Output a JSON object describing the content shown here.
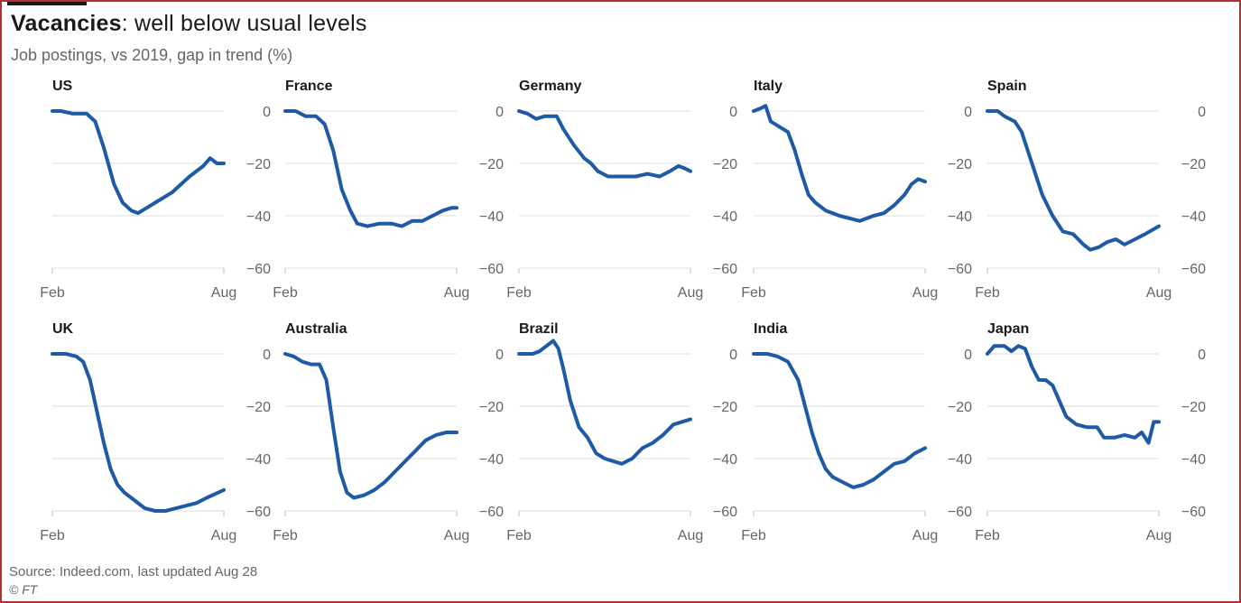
{
  "header": {
    "title_bold": "Vacancies",
    "title_rest": ": well below usual levels",
    "subtitle": "Job postings, vs 2019, gap in trend (%)"
  },
  "footer": {
    "source": "Source: Indeed.com, last updated Aug 28",
    "credit": "© FT"
  },
  "colors": {
    "line": "#1f5aa6",
    "grid": "#e4e4e4",
    "text": "#666666",
    "frame": "#b03232"
  },
  "chart_data": [
    {
      "type": "line",
      "title": "US",
      "xlabel": "",
      "ylabel": "",
      "x_ticks": [
        "Feb",
        "Aug"
      ],
      "y_ticks": [
        0,
        -20,
        -40,
        -60
      ],
      "ylim": [
        -60,
        5
      ],
      "grid": true,
      "series": [
        {
          "values": [
            [
              0,
              0
            ],
            [
              0.05,
              0
            ],
            [
              0.12,
              -1
            ],
            [
              0.2,
              -1
            ],
            [
              0.25,
              -4
            ],
            [
              0.3,
              -14
            ],
            [
              0.36,
              -28
            ],
            [
              0.41,
              -35
            ],
            [
              0.46,
              -38
            ],
            [
              0.5,
              -39
            ],
            [
              0.55,
              -37
            ],
            [
              0.6,
              -35
            ],
            [
              0.7,
              -31
            ],
            [
              0.8,
              -25
            ],
            [
              0.88,
              -21
            ],
            [
              0.92,
              -18
            ],
            [
              0.96,
              -20
            ],
            [
              1,
              -20
            ]
          ]
        }
      ]
    },
    {
      "type": "line",
      "title": "France",
      "xlabel": "",
      "ylabel": "",
      "x_ticks": [
        "Feb",
        "Aug"
      ],
      "y_ticks": [
        0,
        -20,
        -40,
        -60
      ],
      "ylim": [
        -60,
        5
      ],
      "grid": true,
      "series": [
        {
          "values": [
            [
              0,
              0
            ],
            [
              0.06,
              0
            ],
            [
              0.12,
              -2
            ],
            [
              0.18,
              -2
            ],
            [
              0.23,
              -5
            ],
            [
              0.28,
              -15
            ],
            [
              0.33,
              -30
            ],
            [
              0.38,
              -38
            ],
            [
              0.42,
              -43
            ],
            [
              0.48,
              -44
            ],
            [
              0.55,
              -43
            ],
            [
              0.62,
              -43
            ],
            [
              0.68,
              -44
            ],
            [
              0.74,
              -42
            ],
            [
              0.8,
              -42
            ],
            [
              0.86,
              -40
            ],
            [
              0.92,
              -38
            ],
            [
              0.97,
              -37
            ],
            [
              1,
              -37
            ]
          ]
        }
      ]
    },
    {
      "type": "line",
      "title": "Germany",
      "xlabel": "",
      "ylabel": "",
      "x_ticks": [
        "Feb",
        "Aug"
      ],
      "y_ticks": [
        0,
        -20,
        -40,
        -60
      ],
      "ylim": [
        -60,
        5
      ],
      "grid": true,
      "series": [
        {
          "values": [
            [
              0,
              0
            ],
            [
              0.05,
              -1
            ],
            [
              0.1,
              -3
            ],
            [
              0.15,
              -2
            ],
            [
              0.22,
              -2
            ],
            [
              0.26,
              -7
            ],
            [
              0.32,
              -13
            ],
            [
              0.38,
              -18
            ],
            [
              0.42,
              -20
            ],
            [
              0.46,
              -23
            ],
            [
              0.52,
              -25
            ],
            [
              0.6,
              -25
            ],
            [
              0.68,
              -25
            ],
            [
              0.75,
              -24
            ],
            [
              0.82,
              -25
            ],
            [
              0.88,
              -23
            ],
            [
              0.93,
              -21
            ],
            [
              0.97,
              -22
            ],
            [
              1,
              -23
            ]
          ]
        }
      ]
    },
    {
      "type": "line",
      "title": "Italy",
      "xlabel": "",
      "ylabel": "",
      "x_ticks": [
        "Feb",
        "Aug"
      ],
      "y_ticks": [
        0,
        -20,
        -40,
        -60
      ],
      "ylim": [
        -60,
        5
      ],
      "grid": true,
      "series": [
        {
          "values": [
            [
              0,
              0
            ],
            [
              0.04,
              1
            ],
            [
              0.07,
              2
            ],
            [
              0.1,
              -4
            ],
            [
              0.15,
              -6
            ],
            [
              0.2,
              -8
            ],
            [
              0.24,
              -15
            ],
            [
              0.28,
              -24
            ],
            [
              0.32,
              -32
            ],
            [
              0.36,
              -35
            ],
            [
              0.42,
              -38
            ],
            [
              0.5,
              -40
            ],
            [
              0.56,
              -41
            ],
            [
              0.62,
              -42
            ],
            [
              0.7,
              -40
            ],
            [
              0.76,
              -39
            ],
            [
              0.82,
              -36
            ],
            [
              0.88,
              -32
            ],
            [
              0.92,
              -28
            ],
            [
              0.96,
              -26
            ],
            [
              1,
              -27
            ]
          ]
        }
      ]
    },
    {
      "type": "line",
      "title": "Spain",
      "xlabel": "",
      "ylabel": "",
      "x_ticks": [
        "Feb",
        "Aug"
      ],
      "y_ticks": [
        0,
        -20,
        -40,
        -60
      ],
      "ylim": [
        -60,
        5
      ],
      "grid": true,
      "series": [
        {
          "values": [
            [
              0,
              0
            ],
            [
              0.06,
              0
            ],
            [
              0.1,
              -2
            ],
            [
              0.16,
              -4
            ],
            [
              0.2,
              -8
            ],
            [
              0.26,
              -20
            ],
            [
              0.32,
              -32
            ],
            [
              0.38,
              -40
            ],
            [
              0.44,
              -46
            ],
            [
              0.5,
              -47
            ],
            [
              0.56,
              -51
            ],
            [
              0.6,
              -53
            ],
            [
              0.65,
              -52
            ],
            [
              0.7,
              -50
            ],
            [
              0.75,
              -49
            ],
            [
              0.8,
              -51
            ],
            [
              0.86,
              -49
            ],
            [
              0.92,
              -47
            ],
            [
              1,
              -44
            ]
          ]
        }
      ]
    },
    {
      "type": "line",
      "title": "UK",
      "xlabel": "",
      "ylabel": "",
      "x_ticks": [
        "Feb",
        "Aug"
      ],
      "y_ticks": [
        0,
        -20,
        -40,
        -60
      ],
      "ylim": [
        -60,
        5
      ],
      "grid": true,
      "series": [
        {
          "values": [
            [
              0,
              0
            ],
            [
              0.08,
              0
            ],
            [
              0.14,
              -1
            ],
            [
              0.18,
              -3
            ],
            [
              0.22,
              -10
            ],
            [
              0.26,
              -22
            ],
            [
              0.3,
              -34
            ],
            [
              0.34,
              -44
            ],
            [
              0.38,
              -50
            ],
            [
              0.42,
              -53
            ],
            [
              0.48,
              -56
            ],
            [
              0.54,
              -59
            ],
            [
              0.6,
              -60
            ],
            [
              0.66,
              -60
            ],
            [
              0.72,
              -59
            ],
            [
              0.78,
              -58
            ],
            [
              0.84,
              -57
            ],
            [
              0.9,
              -55
            ],
            [
              1,
              -52
            ]
          ]
        }
      ]
    },
    {
      "type": "line",
      "title": "Australia",
      "xlabel": "",
      "ylabel": "",
      "x_ticks": [
        "Feb",
        "Aug"
      ],
      "y_ticks": [
        0,
        -20,
        -40,
        -60
      ],
      "ylim": [
        -60,
        5
      ],
      "grid": true,
      "series": [
        {
          "values": [
            [
              0,
              0
            ],
            [
              0.05,
              -1
            ],
            [
              0.1,
              -3
            ],
            [
              0.15,
              -4
            ],
            [
              0.2,
              -4
            ],
            [
              0.24,
              -10
            ],
            [
              0.28,
              -28
            ],
            [
              0.32,
              -45
            ],
            [
              0.36,
              -53
            ],
            [
              0.4,
              -55
            ],
            [
              0.46,
              -54
            ],
            [
              0.52,
              -52
            ],
            [
              0.58,
              -49
            ],
            [
              0.64,
              -45
            ],
            [
              0.7,
              -41
            ],
            [
              0.76,
              -37
            ],
            [
              0.82,
              -33
            ],
            [
              0.88,
              -31
            ],
            [
              0.94,
              -30
            ],
            [
              1,
              -30
            ]
          ]
        }
      ]
    },
    {
      "type": "line",
      "title": "Brazil",
      "xlabel": "",
      "ylabel": "",
      "x_ticks": [
        "Feb",
        "Aug"
      ],
      "y_ticks": [
        0,
        -20,
        -40,
        -60
      ],
      "ylim": [
        -60,
        5
      ],
      "grid": true,
      "series": [
        {
          "values": [
            [
              0,
              0
            ],
            [
              0.08,
              0
            ],
            [
              0.12,
              1
            ],
            [
              0.16,
              3
            ],
            [
              0.2,
              5
            ],
            [
              0.23,
              2
            ],
            [
              0.26,
              -6
            ],
            [
              0.3,
              -18
            ],
            [
              0.35,
              -28
            ],
            [
              0.4,
              -32
            ],
            [
              0.45,
              -38
            ],
            [
              0.5,
              -40
            ],
            [
              0.55,
              -41
            ],
            [
              0.6,
              -42
            ],
            [
              0.66,
              -40
            ],
            [
              0.72,
              -36
            ],
            [
              0.78,
              -34
            ],
            [
              0.84,
              -31
            ],
            [
              0.9,
              -27
            ],
            [
              1,
              -25
            ]
          ]
        }
      ]
    },
    {
      "type": "line",
      "title": "India",
      "xlabel": "",
      "ylabel": "",
      "x_ticks": [
        "Feb",
        "Aug"
      ],
      "y_ticks": [
        0,
        -20,
        -40,
        -60
      ],
      "ylim": [
        -60,
        5
      ],
      "grid": true,
      "series": [
        {
          "values": [
            [
              0,
              0
            ],
            [
              0.08,
              0
            ],
            [
              0.14,
              -1
            ],
            [
              0.2,
              -3
            ],
            [
              0.26,
              -10
            ],
            [
              0.3,
              -20
            ],
            [
              0.34,
              -30
            ],
            [
              0.38,
              -38
            ],
            [
              0.42,
              -44
            ],
            [
              0.46,
              -47
            ],
            [
              0.52,
              -49
            ],
            [
              0.58,
              -51
            ],
            [
              0.64,
              -50
            ],
            [
              0.7,
              -48
            ],
            [
              0.76,
              -45
            ],
            [
              0.82,
              -42
            ],
            [
              0.88,
              -41
            ],
            [
              0.94,
              -38
            ],
            [
              1,
              -36
            ]
          ]
        }
      ]
    },
    {
      "type": "line",
      "title": "Japan",
      "xlabel": "",
      "ylabel": "",
      "x_ticks": [
        "Feb",
        "Aug"
      ],
      "y_ticks": [
        0,
        -20,
        -40,
        -60
      ],
      "ylim": [
        -60,
        5
      ],
      "grid": true,
      "series": [
        {
          "values": [
            [
              0,
              0
            ],
            [
              0.04,
              3
            ],
            [
              0.1,
              3
            ],
            [
              0.14,
              1
            ],
            [
              0.18,
              3
            ],
            [
              0.22,
              2
            ],
            [
              0.26,
              -5
            ],
            [
              0.3,
              -10
            ],
            [
              0.34,
              -10
            ],
            [
              0.38,
              -12
            ],
            [
              0.42,
              -18
            ],
            [
              0.46,
              -24
            ],
            [
              0.52,
              -27
            ],
            [
              0.58,
              -28
            ],
            [
              0.64,
              -28
            ],
            [
              0.68,
              -32
            ],
            [
              0.74,
              -32
            ],
            [
              0.8,
              -31
            ],
            [
              0.86,
              -32
            ],
            [
              0.9,
              -30
            ],
            [
              0.94,
              -34
            ],
            [
              0.97,
              -26
            ],
            [
              1,
              -26
            ]
          ]
        }
      ]
    }
  ]
}
